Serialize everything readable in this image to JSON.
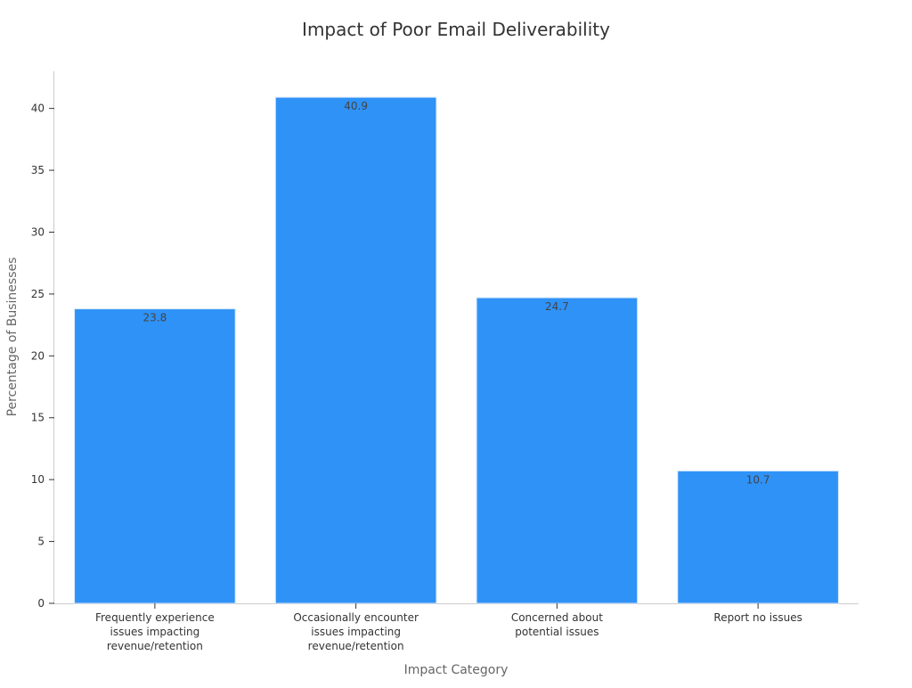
{
  "chart_data": {
    "type": "bar",
    "title": "Impact of Poor Email Deliverability",
    "xlabel": "Impact Category",
    "ylabel": "Percentage of Businesses",
    "categories": [
      [
        "Frequently experience",
        "issues impacting",
        "revenue/retention"
      ],
      [
        "Occasionally encounter",
        "issues impacting",
        "revenue/retention"
      ],
      [
        "Concerned about",
        "potential issues"
      ],
      [
        "Report no issues"
      ]
    ],
    "values": [
      23.8,
      40.9,
      24.7,
      10.7
    ],
    "data_labels": [
      "23.8",
      "40.9",
      "24.7",
      "10.7"
    ],
    "ylim": [
      0,
      43
    ],
    "yticks": [
      0,
      5,
      10,
      15,
      20,
      25,
      30,
      35,
      40
    ],
    "grid": false,
    "bar_color": "#2f92f7"
  }
}
